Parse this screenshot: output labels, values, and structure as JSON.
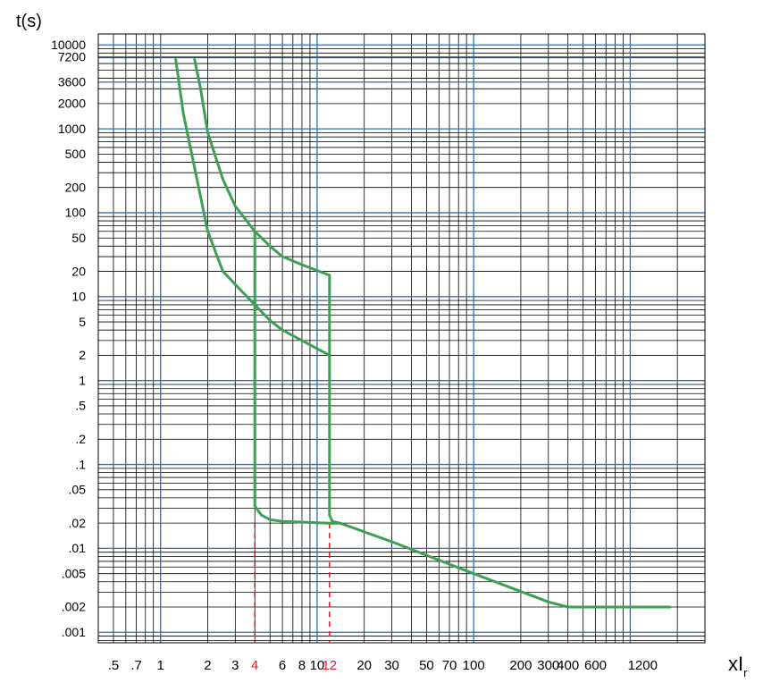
{
  "chart_data": {
    "type": "line",
    "title": "",
    "ylabel": "t(s)",
    "xlabel": "xIr",
    "xlabel_main": "xI",
    "xlabel_sub": "r",
    "x_scale": "log",
    "y_scale": "log",
    "xlim": [
      0.4,
      3000
    ],
    "ylim": [
      0.00075,
      13500
    ],
    "grid": true,
    "legend": "none",
    "y_ticks": [
      {
        "label": "10000",
        "value": 10000
      },
      {
        "label": "7200",
        "value": 7200
      },
      {
        "label": "3600",
        "value": 3600
      },
      {
        "label": "2000",
        "value": 2000
      },
      {
        "label": "1000",
        "value": 1000
      },
      {
        "label": "500",
        "value": 500
      },
      {
        "label": "200",
        "value": 200
      },
      {
        "label": "100",
        "value": 100
      },
      {
        "label": "50",
        "value": 50
      },
      {
        "label": "20",
        "value": 20
      },
      {
        "label": "10",
        "value": 10
      },
      {
        "label": "5",
        "value": 5
      },
      {
        "label": "2",
        "value": 2
      },
      {
        "label": "1",
        "value": 1
      },
      {
        "label": ".5",
        "value": 0.5
      },
      {
        "label": ".2",
        "value": 0.2
      },
      {
        "label": ".1",
        "value": 0.1
      },
      {
        "label": ".05",
        "value": 0.05
      },
      {
        "label": ".02",
        "value": 0.02
      },
      {
        "label": ".01",
        "value": 0.01
      },
      {
        "label": ".005",
        "value": 0.005
      },
      {
        "label": ".002",
        "value": 0.002
      },
      {
        "label": ".001",
        "value": 0.001
      }
    ],
    "x_ticks": [
      {
        "label": ".5",
        "value": 0.5
      },
      {
        "label": ".7",
        "value": 0.7
      },
      {
        "label": "1",
        "value": 1
      },
      {
        "label": "2",
        "value": 2
      },
      {
        "label": "3",
        "value": 3
      },
      {
        "label": "4",
        "value": 4,
        "highlight": true
      },
      {
        "label": "6",
        "value": 6
      },
      {
        "label": "8",
        "value": 8
      },
      {
        "label": "10",
        "value": 10
      },
      {
        "label": "12",
        "value": 12,
        "highlight": true
      },
      {
        "label": "20",
        "value": 20
      },
      {
        "label": "30",
        "value": 30
      },
      {
        "label": "50",
        "value": 50
      },
      {
        "label": "70",
        "value": 70
      },
      {
        "label": "100",
        "value": 100
      },
      {
        "label": "200",
        "value": 200
      },
      {
        "label": "300",
        "value": 300
      },
      {
        "label": "400",
        "value": 400
      },
      {
        "label": "600",
        "value": 600
      },
      {
        "label": "1200",
        "value": 1200
      }
    ],
    "reference_lines": [
      {
        "axis": "x",
        "value": 4,
        "style": "dashed"
      },
      {
        "axis": "x",
        "value": 12,
        "style": "dashed"
      }
    ],
    "series": [
      {
        "points": [
          [
            1.25,
            6700
          ],
          [
            1.4,
            1500
          ],
          [
            1.6,
            450
          ],
          [
            2.0,
            60
          ],
          [
            2.5,
            20
          ],
          [
            3.0,
            14
          ],
          [
            4.0,
            8
          ],
          [
            5.0,
            5.2
          ],
          [
            6.0,
            4
          ],
          [
            8.0,
            3
          ],
          [
            12.0,
            2.0
          ]
        ]
      },
      {
        "points": [
          [
            1.65,
            6700
          ],
          [
            1.8,
            3000
          ],
          [
            2.0,
            900
          ],
          [
            2.5,
            250
          ],
          [
            3.0,
            120
          ],
          [
            4.0,
            60
          ],
          [
            5.0,
            40
          ],
          [
            6.0,
            30
          ],
          [
            8.0,
            24
          ],
          [
            12.0,
            18
          ],
          [
            12.0,
            0.025
          ],
          [
            12.5,
            0.021
          ],
          [
            14.0,
            0.02
          ],
          [
            30.0,
            0.012
          ],
          [
            100.0,
            0.005
          ],
          [
            300.0,
            0.0023
          ],
          [
            400.0,
            0.002
          ],
          [
            1800.0,
            0.002
          ]
        ]
      },
      {
        "points": [
          [
            4.0,
            60
          ],
          [
            4.0,
            0.032
          ],
          [
            4.4,
            0.025
          ],
          [
            5.0,
            0.022
          ],
          [
            6.0,
            0.021
          ],
          [
            12.0,
            0.02
          ],
          [
            14.0,
            0.02
          ]
        ]
      }
    ],
    "colors": {
      "curve": "#3f9e55",
      "decade_grid": "#2f6eb5",
      "minor_grid": "#000000",
      "dashed_reference": "#e0202a",
      "highlight_tick": "#e0202a",
      "tick_text": "#000000"
    }
  }
}
